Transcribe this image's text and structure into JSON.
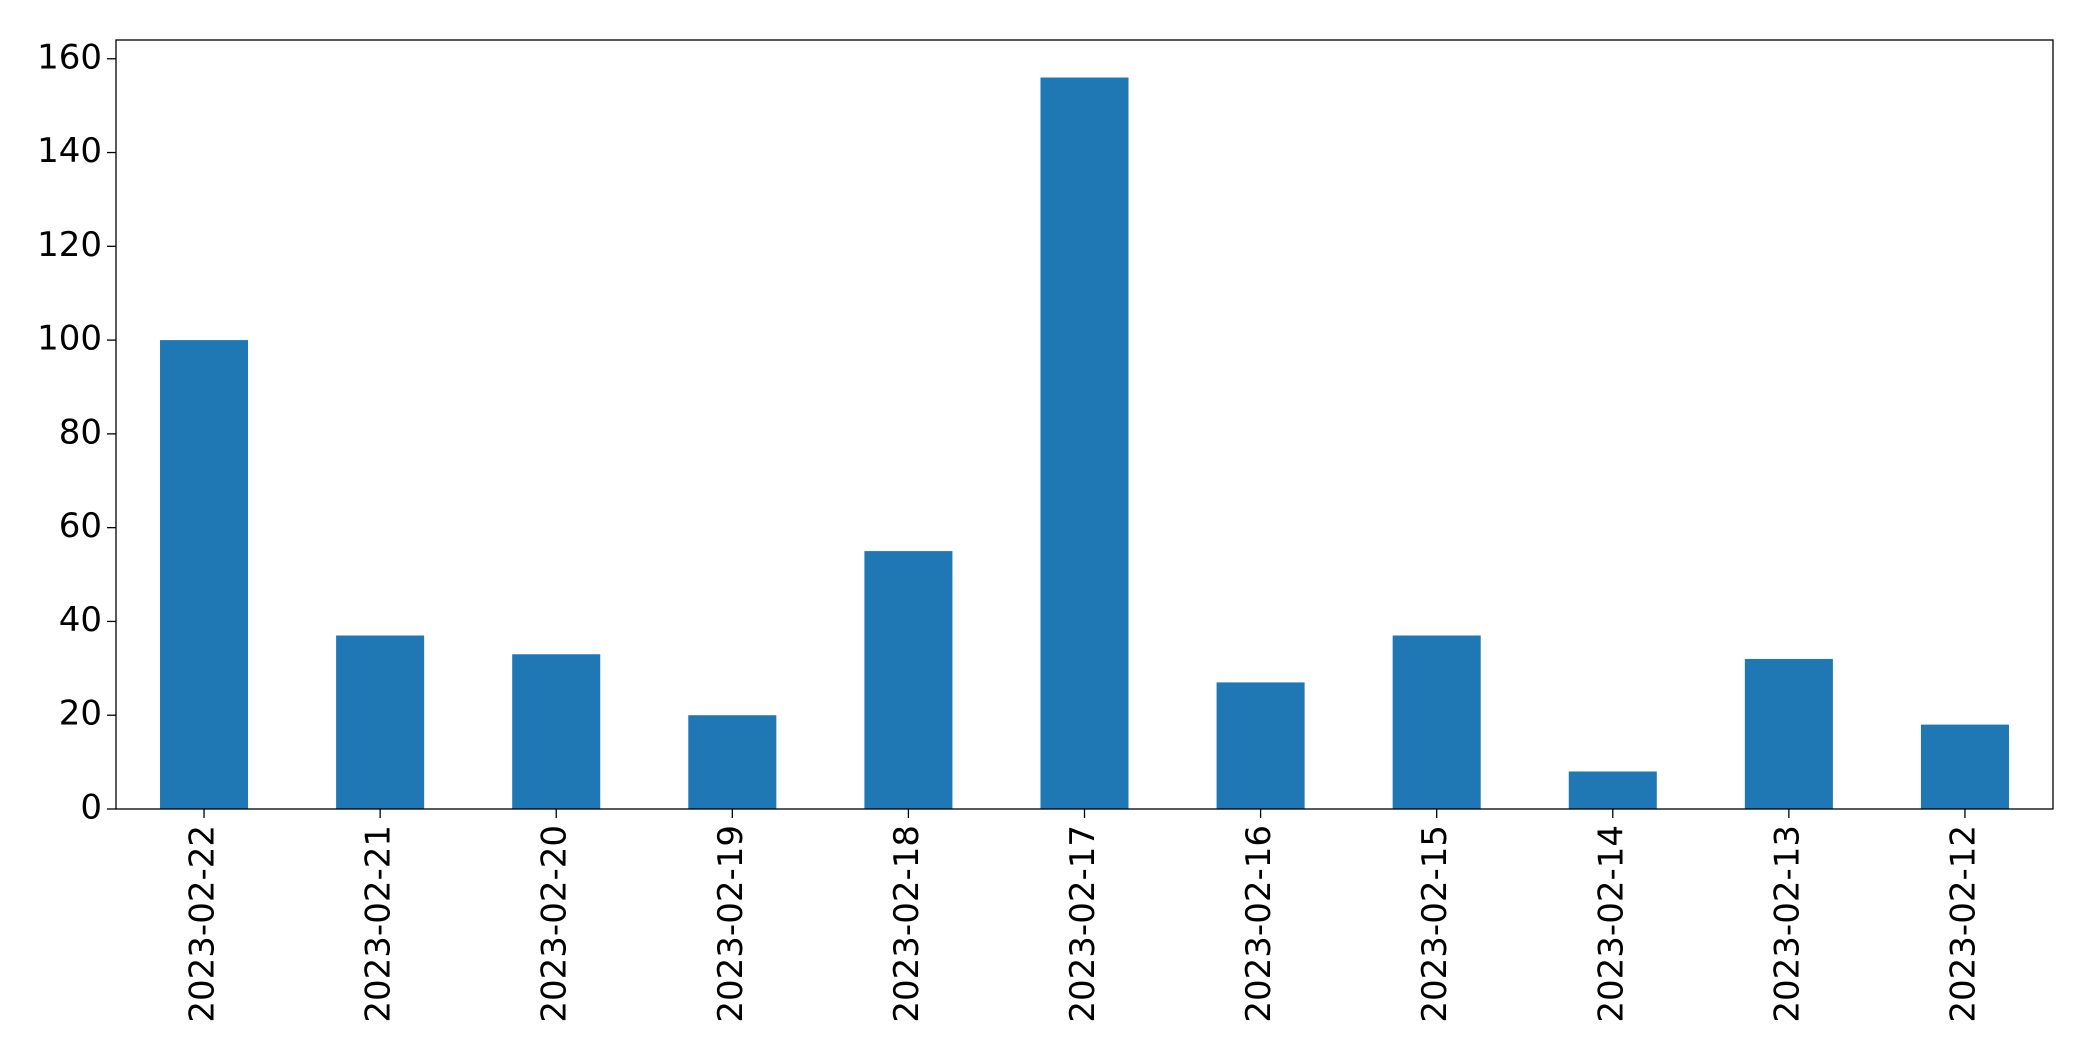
{
  "chart_data": {
    "type": "bar",
    "categories": [
      "2023-02-22",
      "2023-02-21",
      "2023-02-20",
      "2023-02-19",
      "2023-02-18",
      "2023-02-17",
      "2023-02-16",
      "2023-02-15",
      "2023-02-14",
      "2023-02-13",
      "2023-02-12"
    ],
    "values": [
      100,
      37,
      33,
      20,
      55,
      156,
      27,
      37,
      8,
      32,
      18
    ],
    "color": "#1f77b4",
    "ylim": [
      0,
      164
    ],
    "yticks": [
      0,
      20,
      40,
      60,
      80,
      100,
      120,
      140,
      160
    ],
    "grid": false
  }
}
